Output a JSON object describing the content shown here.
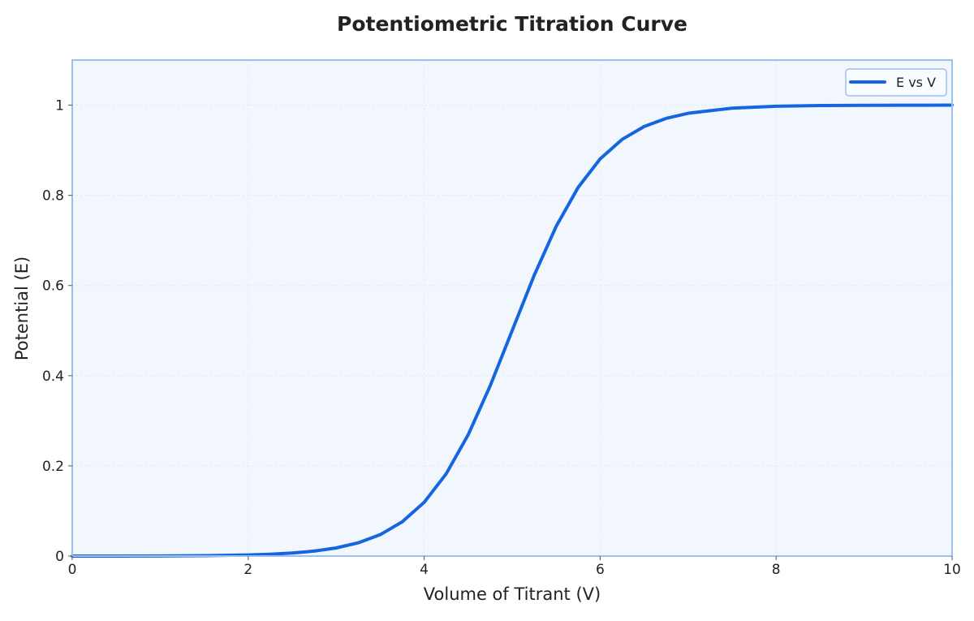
{
  "chart_data": {
    "type": "line",
    "title": "Potentiometric Titration Curve",
    "xlabel": "Volume of Titrant (V)",
    "ylabel": "Potential (E)",
    "xlim": [
      0,
      10
    ],
    "ylim": [
      0,
      1.1
    ],
    "xticks": [
      0,
      2,
      4,
      6,
      8,
      10
    ],
    "yticks": [
      0,
      0.2,
      0.4,
      0.6,
      0.8,
      1
    ],
    "xtick_labels": [
      "0",
      "2",
      "4",
      "6",
      "8",
      "10"
    ],
    "ytick_labels": [
      "0",
      "0.2",
      "0.4",
      "0.6",
      "0.8",
      "1"
    ],
    "grid": true,
    "legend_position": "top-right",
    "series": [
      {
        "name": "E vs V",
        "color": "#1565e0",
        "x": [
          0,
          0.5,
          1,
          1.5,
          2,
          2.25,
          2.5,
          2.75,
          3,
          3.25,
          3.5,
          3.75,
          4,
          4.25,
          4.5,
          4.75,
          5,
          5.25,
          5.5,
          5.75,
          6,
          6.25,
          6.5,
          6.75,
          7,
          7.5,
          8,
          8.5,
          9,
          9.5,
          10
        ],
        "y": [
          0.0,
          0.0001,
          0.0003,
          0.0009,
          0.0025,
          0.0041,
          0.0067,
          0.011,
          0.018,
          0.0293,
          0.0474,
          0.0759,
          0.1192,
          0.1824,
          0.2689,
          0.3775,
          0.5,
          0.6225,
          0.7311,
          0.8176,
          0.8808,
          0.9241,
          0.9526,
          0.9707,
          0.982,
          0.9933,
          0.9975,
          0.9991,
          0.9997,
          0.9999,
          1.0
        ]
      }
    ],
    "colors": {
      "plot_background": "#f2f7fe",
      "plot_border": "#9cc0f2",
      "grid": "#dde6f3",
      "text": "#222222"
    }
  }
}
